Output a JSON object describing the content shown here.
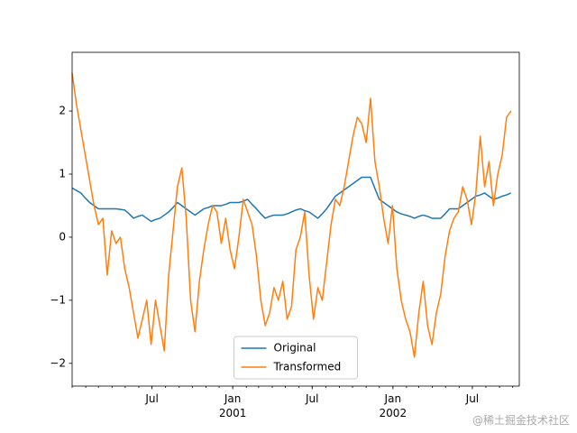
{
  "chart_data": {
    "type": "line",
    "x": [
      "2000-01-01",
      "2000-01-11",
      "2000-01-21",
      "2000-01-31",
      "2000-02-10",
      "2000-02-20",
      "2000-03-01",
      "2000-03-11",
      "2000-03-21",
      "2000-03-31",
      "2000-04-10",
      "2000-04-20",
      "2000-04-30",
      "2000-05-10",
      "2000-05-20",
      "2000-05-30",
      "2000-06-09",
      "2000-06-19",
      "2000-06-29",
      "2000-07-09",
      "2000-07-19",
      "2000-07-29",
      "2000-08-08",
      "2000-08-18",
      "2000-08-28",
      "2000-09-07",
      "2000-09-17",
      "2000-09-27",
      "2000-10-07",
      "2000-10-17",
      "2000-10-27",
      "2000-11-06",
      "2000-11-16",
      "2000-11-26",
      "2000-12-06",
      "2000-12-16",
      "2000-12-26",
      "2001-01-05",
      "2001-01-15",
      "2001-01-25",
      "2001-02-04",
      "2001-02-14",
      "2001-02-24",
      "2001-03-06",
      "2001-03-16",
      "2001-03-26",
      "2001-04-05",
      "2001-04-15",
      "2001-04-25",
      "2001-05-05",
      "2001-05-15",
      "2001-05-25",
      "2001-06-04",
      "2001-06-14",
      "2001-06-24",
      "2001-07-04",
      "2001-07-14",
      "2001-07-24",
      "2001-08-03",
      "2001-08-13",
      "2001-08-23",
      "2001-09-02",
      "2001-09-12",
      "2001-09-22",
      "2001-10-02",
      "2001-10-12",
      "2001-10-22",
      "2001-11-01",
      "2001-11-11",
      "2001-11-21",
      "2001-12-01",
      "2001-12-11",
      "2001-12-21",
      "2001-12-31",
      "2002-01-10",
      "2002-01-20",
      "2002-01-30",
      "2002-02-09",
      "2002-02-19",
      "2002-03-01",
      "2002-03-11",
      "2002-03-21",
      "2002-03-31",
      "2002-04-10",
      "2002-04-20",
      "2002-04-30",
      "2002-05-10",
      "2002-05-20",
      "2002-05-30",
      "2002-06-09",
      "2002-06-19",
      "2002-06-29",
      "2002-07-09",
      "2002-07-19",
      "2002-07-29",
      "2002-08-08",
      "2002-08-18",
      "2002-08-28",
      "2002-09-07",
      "2002-09-17",
      "2002-09-27"
    ],
    "series": [
      {
        "name": "Original",
        "color": "#1f77b4",
        "values": [
          0.78,
          0.74,
          0.7,
          0.62,
          0.55,
          0.5,
          0.45,
          0.45,
          0.45,
          0.45,
          0.45,
          0.44,
          0.43,
          0.37,
          0.3,
          0.33,
          0.35,
          0.3,
          0.25,
          0.28,
          0.3,
          0.35,
          0.4,
          0.47,
          0.55,
          0.5,
          0.45,
          0.4,
          0.35,
          0.4,
          0.45,
          0.47,
          0.5,
          0.5,
          0.5,
          0.52,
          0.55,
          0.55,
          0.55,
          0.57,
          0.6,
          0.52,
          0.45,
          0.37,
          0.3,
          0.33,
          0.35,
          0.35,
          0.35,
          0.37,
          0.4,
          0.43,
          0.45,
          0.42,
          0.4,
          0.35,
          0.3,
          0.37,
          0.45,
          0.55,
          0.65,
          0.7,
          0.75,
          0.8,
          0.85,
          0.9,
          0.95,
          0.95,
          0.95,
          0.77,
          0.6,
          0.55,
          0.5,
          0.45,
          0.4,
          0.37,
          0.35,
          0.33,
          0.3,
          0.33,
          0.35,
          0.33,
          0.3,
          0.3,
          0.3,
          0.37,
          0.45,
          0.45,
          0.45,
          0.5,
          0.55,
          0.6,
          0.65,
          0.67,
          0.7,
          0.65,
          0.6,
          0.62,
          0.65,
          0.67,
          0.7
        ]
      },
      {
        "name": "Transformed",
        "color": "#ff7f0e",
        "values": [
          2.6,
          2.1,
          1.7,
          1.3,
          0.9,
          0.5,
          0.2,
          0.3,
          -0.6,
          0.1,
          -0.1,
          0.0,
          -0.5,
          -0.8,
          -1.2,
          -1.6,
          -1.3,
          -1.0,
          -1.7,
          -1.0,
          -1.4,
          -1.8,
          -0.6,
          0.1,
          0.8,
          1.1,
          0.3,
          -1.0,
          -1.5,
          -0.7,
          -0.2,
          0.2,
          0.5,
          0.4,
          -0.1,
          0.3,
          -0.2,
          -0.5,
          0.0,
          0.6,
          0.4,
          0.2,
          -0.3,
          -1.0,
          -1.4,
          -1.2,
          -0.8,
          -1.0,
          -0.7,
          -1.3,
          -1.1,
          -0.2,
          0.0,
          0.4,
          -0.6,
          -1.3,
          -0.8,
          -1.0,
          -0.4,
          0.2,
          0.6,
          0.5,
          0.8,
          1.2,
          1.6,
          1.9,
          1.8,
          1.5,
          2.2,
          1.2,
          0.8,
          0.3,
          -0.1,
          0.5,
          -0.5,
          -1.0,
          -1.3,
          -1.5,
          -1.9,
          -1.2,
          -0.7,
          -1.4,
          -1.7,
          -1.2,
          -0.9,
          -0.3,
          0.1,
          0.3,
          0.4,
          0.8,
          0.6,
          0.2,
          0.7,
          1.6,
          0.8,
          1.2,
          0.5,
          1.0,
          1.3,
          1.9,
          2.0
        ]
      }
    ],
    "xlim": [
      "2000-01-01",
      "2002-10-16"
    ],
    "xticks": [
      {
        "value": "2000-07-01",
        "label": "Jul"
      },
      {
        "value": "2001-01-01",
        "label": "Jan\n2001"
      },
      {
        "value": "2001-07-01",
        "label": "Jul"
      },
      {
        "value": "2002-01-01",
        "label": "Jan\n2002"
      },
      {
        "value": "2002-07-01",
        "label": "Jul"
      }
    ],
    "ylim": [
      -2.36,
      2.93
    ],
    "yticks": [
      {
        "value": -2,
        "label": "−2"
      },
      {
        "value": -1,
        "label": "−1"
      },
      0,
      1,
      2
    ],
    "grid": false,
    "legend": "lower center",
    "watermark": "@稀土掘金技术社区"
  }
}
